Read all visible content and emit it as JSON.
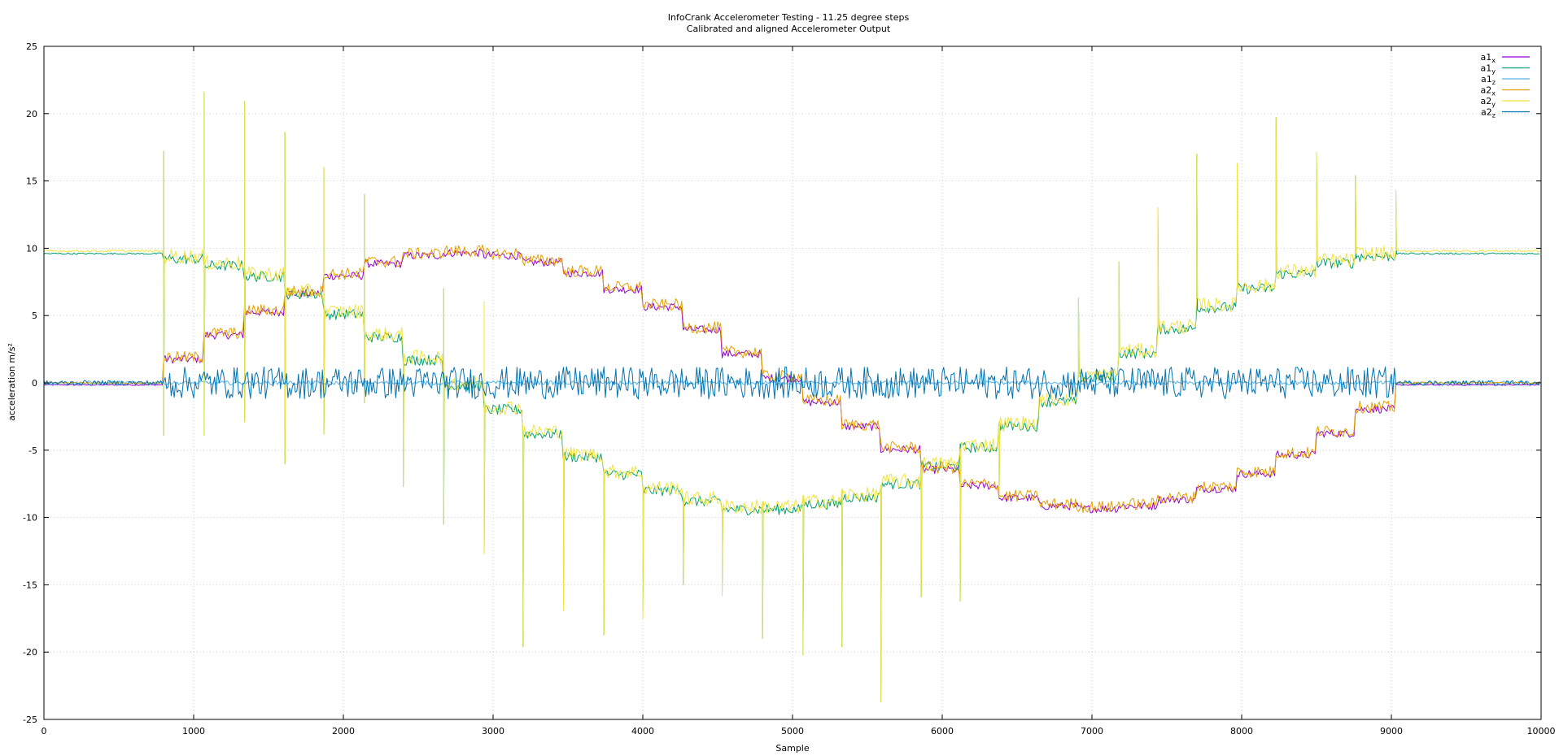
{
  "chart_data": {
    "type": "line",
    "title": "InfoCrank Accelerometer Testing - 11.25 degree steps",
    "subtitle": "Calibrated and aligned Accelerometer Output",
    "xlabel": "Sample",
    "ylabel": "acceleration m/s²",
    "xlim": [
      0,
      10000
    ],
    "ylim": [
      -25,
      25
    ],
    "x_ticks": [
      0,
      1000,
      2000,
      3000,
      4000,
      5000,
      6000,
      7000,
      8000,
      9000,
      10000
    ],
    "y_ticks": [
      -25,
      -20,
      -15,
      -10,
      -5,
      0,
      5,
      10,
      15,
      20,
      25
    ],
    "grid": true,
    "legend_position": "top-right",
    "sample_interval": 10,
    "series": [
      {
        "name": "a1",
        "subscript": "x",
        "color": "#9400d3"
      },
      {
        "name": "a1",
        "subscript": "y",
        "color": "#009e73"
      },
      {
        "name": "a1",
        "subscript": "z",
        "color": "#56b4e9"
      },
      {
        "name": "a2",
        "subscript": "x",
        "color": "#e69f00"
      },
      {
        "name": "a2",
        "subscript": "y",
        "color": "#f0e442"
      },
      {
        "name": "a2",
        "subscript": "z",
        "color": "#0072b2"
      }
    ],
    "step_boundaries": [
      800,
      1070,
      1340,
      1610,
      1870,
      2140,
      2400,
      2670,
      2940,
      3200,
      3470,
      3740,
      4000,
      4270,
      4530,
      4800,
      5070,
      5330,
      5590,
      5860,
      6120,
      6380,
      6650,
      6910,
      7180,
      7440,
      7700,
      7970,
      8230,
      8500,
      8760,
      9030
    ],
    "step_levels_x": [
      0,
      1.9,
      3.7,
      5.4,
      6.8,
      8.1,
      9.0,
      9.6,
      9.8,
      9.6,
      9.1,
      8.3,
      7.1,
      5.8,
      4.1,
      2.3,
      0.5,
      -1.3,
      -3.1,
      -4.8,
      -6.3,
      -7.5,
      -8.4,
      -9.0,
      -9.2,
      -9.0,
      -8.5,
      -7.7,
      -6.6,
      -5.2,
      -3.6,
      -1.8,
      0
    ],
    "step_levels_y": [
      9.8,
      9.4,
      8.9,
      8.1,
      6.8,
      5.3,
      3.6,
      1.9,
      0,
      -1.8,
      -3.6,
      -5.3,
      -6.6,
      -7.8,
      -8.6,
      -9.2,
      -9.2,
      -8.8,
      -8.3,
      -7.3,
      -6.0,
      -4.6,
      -3.0,
      -1.2,
      0.6,
      2.4,
      4.2,
      5.8,
      7.2,
      8.3,
      9.1,
      9.6,
      9.8
    ],
    "peak_spikes": [
      {
        "x": 800,
        "y": 17.2
      },
      {
        "x": 1070,
        "y": 21.6
      },
      {
        "x": 1340,
        "y": 20.9
      },
      {
        "x": 1610,
        "y": 18.6
      },
      {
        "x": 1870,
        "y": 16.0
      },
      {
        "x": 2140,
        "y": 14.0
      },
      {
        "x": 2670,
        "y": 7.0
      },
      {
        "x": 2940,
        "y": 6.0
      },
      {
        "x": 6910,
        "y": 6.3
      },
      {
        "x": 7180,
        "y": 9.0
      },
      {
        "x": 7440,
        "y": 13.0
      },
      {
        "x": 7700,
        "y": 17.0
      },
      {
        "x": 7970,
        "y": 16.3
      },
      {
        "x": 8230,
        "y": 19.7
      },
      {
        "x": 8500,
        "y": 17.1
      },
      {
        "x": 8760,
        "y": 15.4
      },
      {
        "x": 9030,
        "y": 14.3
      }
    ],
    "trough_spikes": [
      {
        "x": 2400,
        "y": -7.7
      },
      {
        "x": 2670,
        "y": -10.5
      },
      {
        "x": 2940,
        "y": -12.7
      },
      {
        "x": 3200,
        "y": -19.6
      },
      {
        "x": 3470,
        "y": -16.9
      },
      {
        "x": 3740,
        "y": -18.7
      },
      {
        "x": 4000,
        "y": -17.5
      },
      {
        "x": 4270,
        "y": -15.0
      },
      {
        "x": 4530,
        "y": -15.8
      },
      {
        "x": 4800,
        "y": -19.0
      },
      {
        "x": 5070,
        "y": -20.2
      },
      {
        "x": 5330,
        "y": -19.6
      },
      {
        "x": 5590,
        "y": -23.7
      },
      {
        "x": 5860,
        "y": -15.9
      },
      {
        "x": 6120,
        "y": -16.2
      },
      {
        "x": 6380,
        "y": -8.5
      },
      {
        "x": 800,
        "y": -3.9
      },
      {
        "x": 1070,
        "y": -3.9
      },
      {
        "x": 1340,
        "y": -2.9
      },
      {
        "x": 1610,
        "y": -6.0
      },
      {
        "x": 1870,
        "y": -3.8
      },
      {
        "x": 2140,
        "y": -1.5
      }
    ]
  }
}
